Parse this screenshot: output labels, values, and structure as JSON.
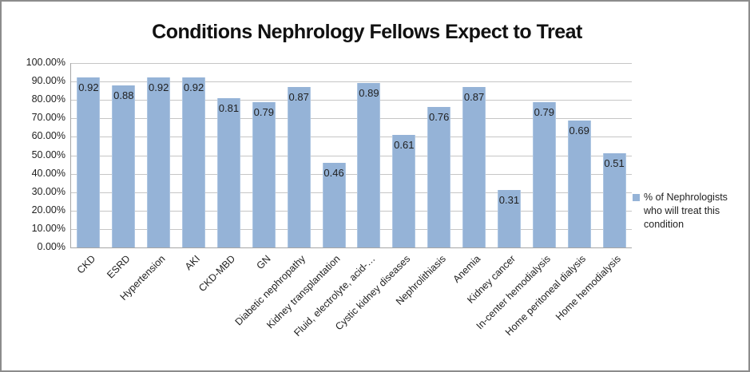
{
  "frame": {
    "border_color": "#8c8c8c",
    "background": "#ffffff"
  },
  "chart_data": {
    "type": "bar",
    "title": "Conditions Nephrology Fellows Expect to Treat",
    "categories": [
      "CKD",
      "ESRD",
      "Hypertension",
      "AKI",
      "CKD-MBD",
      "GN",
      "Diabetic nephropathy",
      "Kidney transplantation",
      "Fluid, electrolyte, acid-…",
      "Cystic kidney diseases",
      "Nephrolithiasis",
      "Anemia",
      "Kidney cancer",
      "In-center hemodialysis",
      "Home peritoneal dialysis",
      "Home hemodialysis"
    ],
    "series": [
      {
        "name": "% of Nephrologists who will treat this condition",
        "values": [
          0.92,
          0.88,
          0.92,
          0.92,
          0.81,
          0.79,
          0.87,
          0.46,
          0.89,
          0.61,
          0.76,
          0.87,
          0.31,
          0.79,
          0.69,
          0.51
        ],
        "data_labels": [
          "0.92",
          "0.88",
          "0.92",
          "0.92",
          "0.81",
          "0.79",
          "0.87",
          "0.46",
          "0.89",
          "0.61",
          "0.76",
          "0.87",
          "0.31",
          "0.79",
          "0.69",
          "0.51"
        ]
      }
    ],
    "value_axis": {
      "min": 0,
      "max": 1,
      "step": 0.1,
      "tick_labels": [
        "100.00%",
        "90.00%",
        "80.00%",
        "70.00%",
        "60.00%",
        "50.00%",
        "40.00%",
        "30.00%",
        "20.00%",
        "10.00%",
        "0.00%"
      ],
      "number_format": "0.00%"
    },
    "legend": {
      "position": "right",
      "label": "% of Nephrologists who will treat this condition"
    },
    "grid": "horizontal",
    "colors": {
      "bar_fill": "#95B3D7",
      "bar_edge": "#aec6e2",
      "gridline": "#c6c6c6",
      "axis_line": "#a6a6a6",
      "text": "#1f1f1f",
      "title_text": "#111111"
    }
  }
}
